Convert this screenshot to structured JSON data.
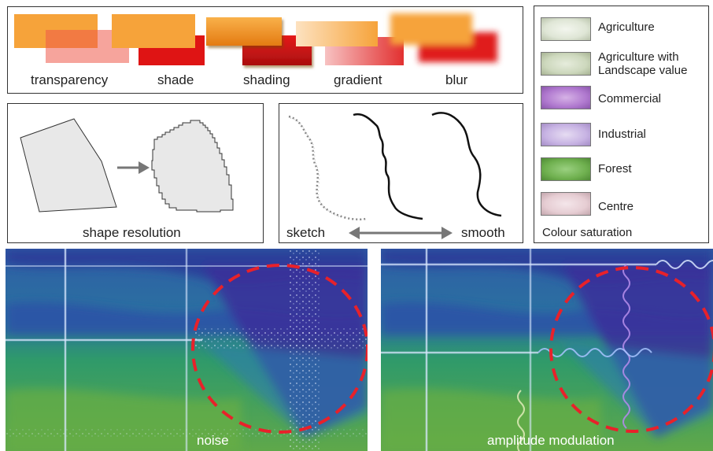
{
  "styles_panel": {
    "labels": [
      "transparency",
      "shade",
      "shading",
      "gradient",
      "blur"
    ]
  },
  "shape_panel": {
    "label": "shape resolution"
  },
  "line_panel": {
    "left_label": "sketch",
    "right_label": "smooth"
  },
  "legend": {
    "items": [
      {
        "label": "Agriculture",
        "color": "#dfe6d6"
      },
      {
        "label": "Agriculture with",
        "label2": "Landscape value",
        "color": "#cdd8bd"
      },
      {
        "label": "Commercial",
        "color": "#b079cf"
      },
      {
        "label": "Industrial",
        "color": "#c7b3e3"
      },
      {
        "label": "Forest",
        "color": "#6fb04f"
      },
      {
        "label": "Centre",
        "color": "#e6cdd3"
      }
    ],
    "caption": "Colour saturation"
  },
  "maps": {
    "left_label": "noise",
    "right_label": "amplitude modulation",
    "highlight_color": "#e8212a"
  }
}
